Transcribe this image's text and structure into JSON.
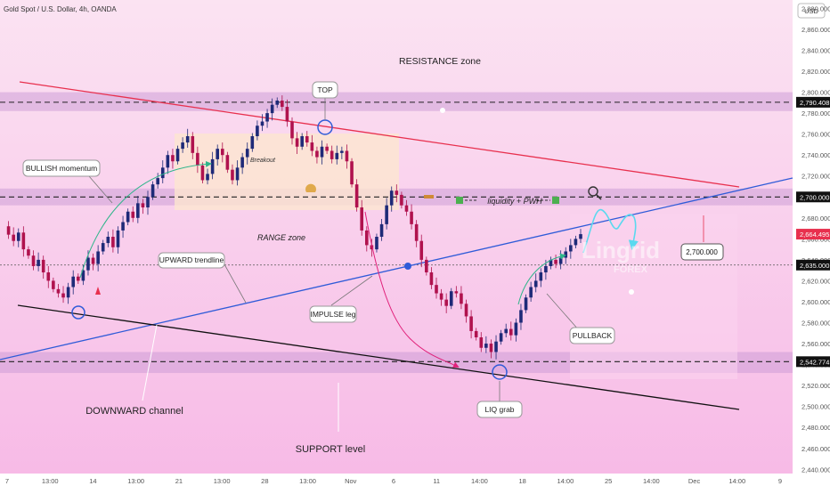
{
  "header": {
    "symbol_title": "Gold Spot / U.S. Dollar, 4h, OANDA",
    "currency_button": "USD"
  },
  "watermark": {
    "line1": "Lingrid",
    "line2": "FOREX"
  },
  "colors": {
    "background_top": "#fbe3f2",
    "background_bottom": "#f7b9e6",
    "zone_band": "#c99ad6",
    "range_box": "#fde6cf",
    "up_candle": "#1e2a78",
    "down_candle": "#b0124e",
    "resistance_line": "#e8304e",
    "trendline": "#2f5bd8",
    "channel_line": "#111111",
    "arrow_green": "#2fb58a",
    "arrow_magenta": "#e0207a",
    "projection": "#5ad9ef",
    "current_price": "#e8304e"
  },
  "annotations": {
    "resistance_zone": "RESISTANCE zone",
    "top": "TOP",
    "bullish_momentum": "BULLISH momentum",
    "breakout": "Breakout",
    "range_zone": "RANGE zone",
    "liquidity": "liquidity + PWH",
    "upward_trendline": "UPWARD trendline",
    "impulse_leg": "IMPULSE leg",
    "pullback": "PULLBACK",
    "target": "2,700.000",
    "downward_channel": "DOWNWARD channel",
    "support_level": "SUPPORT level",
    "liq_grab": "LIQ grab"
  },
  "chart_data": {
    "type": "candlestick",
    "title": "Gold Spot / U.S. Dollar, 4h, OANDA",
    "price_axis_ticks": [
      2880,
      2860,
      2840,
      2820,
      2800,
      2780,
      2760,
      2740,
      2720,
      2700,
      2680,
      2660,
      2640,
      2620,
      2600,
      2580,
      2560,
      2540,
      2520,
      2500,
      2480,
      2460,
      2440
    ],
    "price_axis_labels": [
      "2,880.000",
      "2,860.000",
      "2,840.000",
      "2,820.000",
      "2,800.000",
      "2,780.000",
      "2,760.000",
      "2,740.000",
      "2,720.000",
      "2,700.000",
      "2,680.000",
      "2,660.000",
      "2,640.000",
      "2,620.000",
      "2,600.000",
      "2,580.000",
      "2,560.000",
      "2,540.000",
      "2,520.000",
      "2,500.000",
      "2,480.000",
      "2,460.000",
      "2,440.000"
    ],
    "ylim": [
      2436,
      2888
    ],
    "time_axis_labels": [
      "7",
      "13:00",
      "14",
      "13:00",
      "21",
      "13:00",
      "28",
      "13:00",
      "Nov",
      "6",
      "11",
      "14:00",
      "18",
      "14:00",
      "25",
      "14:00",
      "Dec",
      "14:00",
      "9"
    ],
    "price_labels": [
      {
        "value": 2790.408,
        "text": "2,790.408"
      },
      {
        "value": 2700.0,
        "text": "2,700.000"
      },
      {
        "value": 2664.495,
        "text": "2,664.495",
        "current": true
      },
      {
        "value": 2635.0,
        "text": "2,635.000"
      },
      {
        "value": 2542.774,
        "text": "2,542.774"
      }
    ],
    "levels": {
      "resistance": 2790.408,
      "range_top": 2700,
      "pullback": 2635,
      "support": 2542.774
    },
    "zones": [
      {
        "name": "RESISTANCE zone",
        "from": 2782,
        "to": 2800
      },
      {
        "name": "RANGE zone",
        "from": 2692,
        "to": 2708
      },
      {
        "name": "SUPPORT level",
        "from": 2532,
        "to": 2552
      }
    ],
    "price_path": [
      2672,
      2664,
      2658,
      2666,
      2650,
      2644,
      2634,
      2640,
      2628,
      2620,
      2612,
      2608,
      2604,
      2614,
      2624,
      2620,
      2630,
      2642,
      2636,
      2648,
      2656,
      2662,
      2652,
      2668,
      2676,
      2686,
      2680,
      2694,
      2690,
      2700,
      2712,
      2718,
      2728,
      2740,
      2734,
      2746,
      2752,
      2758,
      2742,
      2730,
      2716,
      2722,
      2736,
      2746,
      2740,
      2726,
      2716,
      2728,
      2738,
      2746,
      2758,
      2768,
      2772,
      2780,
      2788,
      2792,
      2786,
      2772,
      2756,
      2748,
      2758,
      2752,
      2744,
      2738,
      2748,
      2744,
      2736,
      2742,
      2744,
      2734,
      2712,
      2690,
      2668,
      2654,
      2650,
      2662,
      2674,
      2692,
      2706,
      2702,
      2692,
      2686,
      2674,
      2658,
      2640,
      2628,
      2616,
      2608,
      2602,
      2596,
      2610,
      2608,
      2598,
      2586,
      2572,
      2566,
      2556,
      2560,
      2552,
      2562,
      2570,
      2574,
      2568,
      2580,
      2592,
      2604,
      2614,
      2620,
      2628,
      2634,
      2640,
      2636,
      2642,
      2648,
      2654,
      2660,
      2664.495
    ],
    "candle_colors": {
      "up": "#1e2a78",
      "down": "#b0124e"
    }
  }
}
